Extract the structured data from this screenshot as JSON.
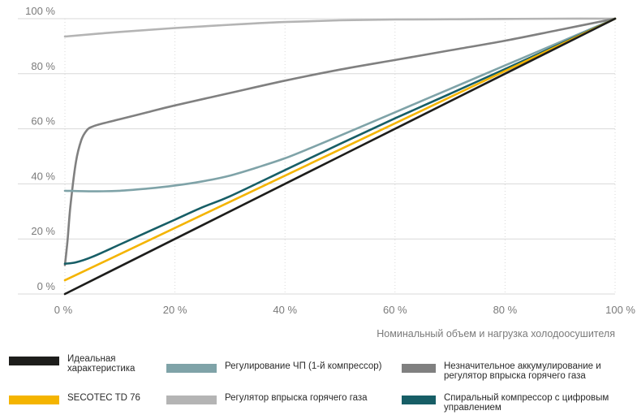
{
  "chart_data": {
    "type": "line",
    "xlabel": "Номинальный объем и нагрузка холодоосушителя",
    "ylabel": "",
    "xlim": [
      0,
      100
    ],
    "ylim": [
      0,
      100
    ],
    "x_ticks": [
      "0 %",
      "20 %",
      "40 %",
      "60 %",
      "80 %",
      "100 %"
    ],
    "y_ticks": [
      "0 %",
      "20 %",
      "40 %",
      "60 %",
      "80 %",
      "100 %"
    ],
    "grid": "horizontal",
    "legend_position": "bottom",
    "series": [
      {
        "name": "Идеальная характеристика",
        "color": "#1d1d1b",
        "x": [
          0,
          100
        ],
        "y": [
          0,
          100
        ]
      },
      {
        "name": "SECOTEC TD 76",
        "color": "#f4b400",
        "x": [
          0,
          100
        ],
        "y": [
          5,
          100
        ]
      },
      {
        "name": "Регулирование ЧП (1-й компрессор)",
        "color": "#7fa3a8",
        "x": [
          0,
          5,
          10,
          15,
          20,
          25,
          30,
          35,
          40,
          45,
          50,
          60,
          70,
          80,
          90,
          100
        ],
        "y": [
          37.5,
          37.3,
          37.5,
          38.3,
          39.4,
          40.9,
          43,
          46,
          49.3,
          53.3,
          57.5,
          66,
          74.5,
          83,
          91.5,
          100
        ]
      },
      {
        "name": "Регулятор впрыска горячего газа",
        "color": "#b4b4b4",
        "x": [
          0,
          10,
          20,
          30,
          40,
          50,
          60,
          70,
          80,
          90,
          100
        ],
        "y": [
          93.5,
          95.2,
          96.6,
          97.8,
          98.8,
          99.4,
          99.7,
          99.8,
          99.9,
          100,
          100
        ]
      },
      {
        "name": "Незначительное аккумулирование и регулятор впрыска горячего газа",
        "color": "#808080",
        "x": [
          0,
          0.5,
          1,
          2,
          3,
          4,
          5,
          7,
          10,
          15,
          20,
          30,
          40,
          50,
          60,
          70,
          80,
          90,
          100
        ],
        "y": [
          10.5,
          20,
          32,
          48,
          56,
          59.5,
          60.8,
          62,
          63.5,
          66,
          68.5,
          73,
          77.5,
          81.5,
          85,
          88.5,
          92,
          96,
          100
        ]
      },
      {
        "name": "Спиральный компрессор с цифровым управлением",
        "color": "#175e66",
        "x": [
          0,
          2,
          5,
          10,
          15,
          20,
          25,
          30,
          40,
          50,
          60,
          70,
          80,
          90,
          100
        ],
        "y": [
          11,
          11.5,
          13.5,
          18,
          22.5,
          27,
          31.5,
          35.5,
          45,
          54.5,
          63.8,
          72.7,
          81.7,
          90.8,
          100
        ]
      }
    ]
  },
  "legend": {
    "ideal": "Идеальная\nхарактеристика",
    "secotec": "SECOTEC TD 76",
    "vfd": "Регулирование ЧП (1-й компрессор)",
    "hotgas": "Регулятор впрыска горячего газа",
    "storage": "Незначительное аккумулирование и\nрегулятор впрыска горячего газа",
    "digital": "Спиральный компрессор с цифровым\nуправлением"
  }
}
